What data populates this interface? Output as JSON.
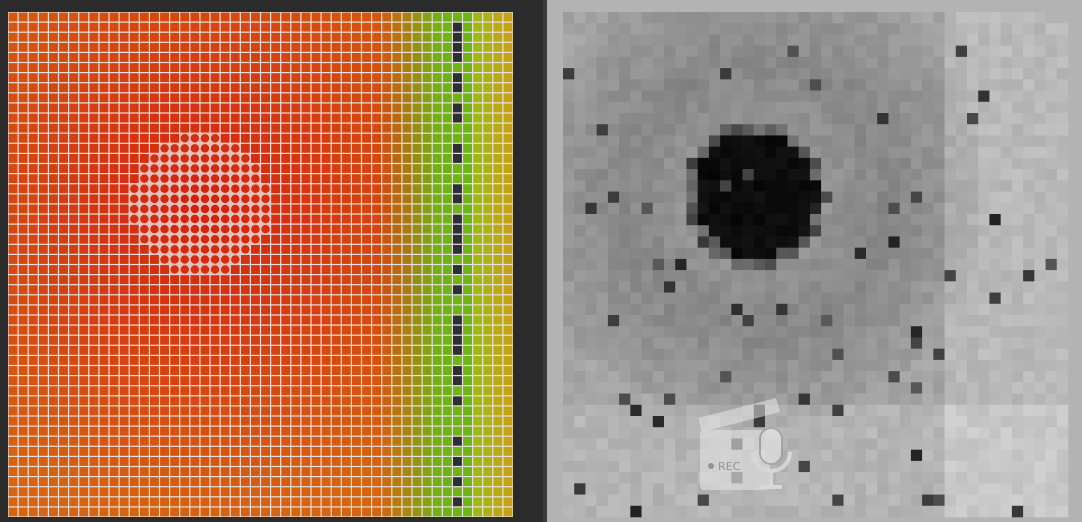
{
  "watermark": {
    "label": "REC"
  }
}
